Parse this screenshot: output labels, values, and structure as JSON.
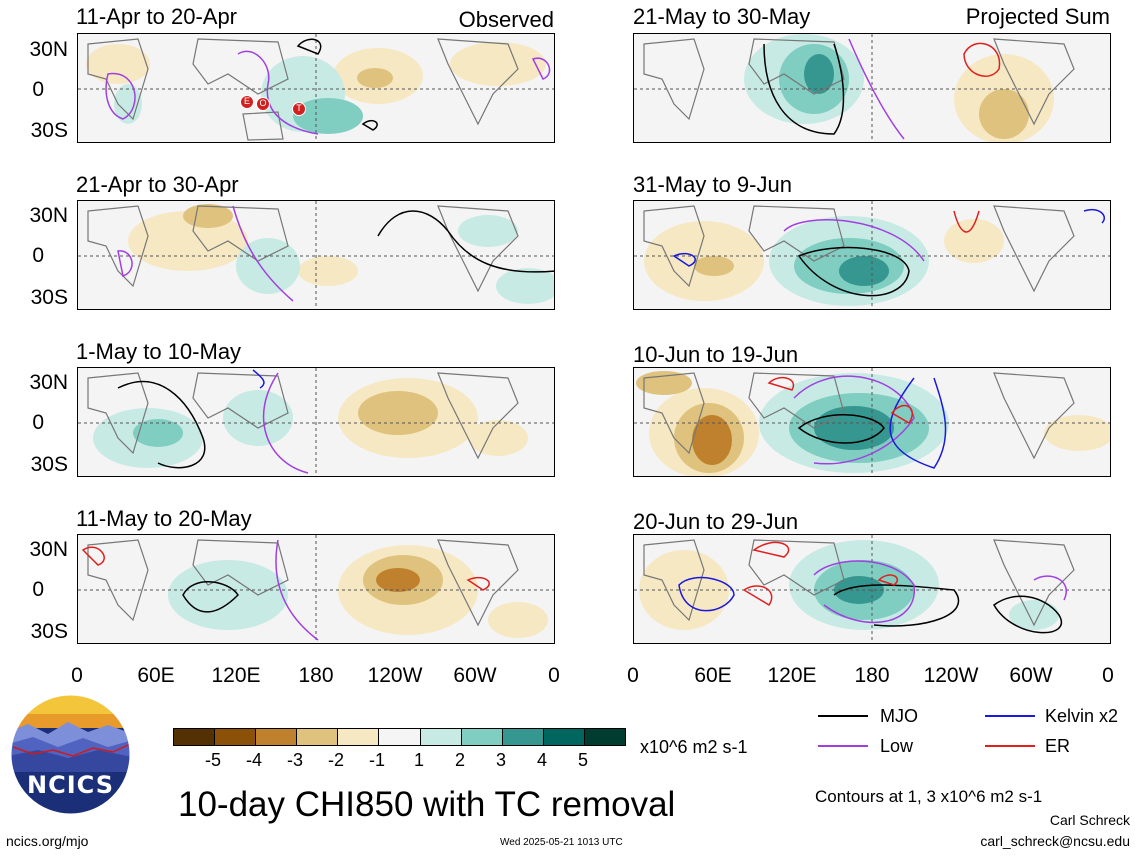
{
  "panels": {
    "left": [
      {
        "title": "11-Apr to 20-Apr",
        "right_title": "Observed"
      },
      {
        "title": "21-Apr to 30-Apr",
        "right_title": ""
      },
      {
        "title": "1-May to 10-May",
        "right_title": ""
      },
      {
        "title": "11-May to 20-May",
        "right_title": ""
      }
    ],
    "right": [
      {
        "title": "21-May to 30-May",
        "right_title": "Projected Sum"
      },
      {
        "title": "31-May to 9-Jun",
        "right_title": ""
      },
      {
        "title": "10-Jun to 19-Jun",
        "right_title": ""
      },
      {
        "title": "20-Jun to 29-Jun",
        "right_title": ""
      }
    ]
  },
  "axes": {
    "y_ticks": [
      "30N",
      "0",
      "30S"
    ],
    "x_ticks": [
      "0",
      "60E",
      "120E",
      "180",
      "120W",
      "60W",
      "0"
    ]
  },
  "tc_markers": [
    "E",
    "O",
    "T"
  ],
  "colorbar": {
    "labels": [
      "-5",
      "-4",
      "-3",
      "-2",
      "-1",
      "1",
      "2",
      "3",
      "4",
      "5"
    ],
    "units": "x10^6 m2 s-1",
    "colors": [
      "#543005",
      "#8c5109",
      "#bf812d",
      "#dfc27d",
      "#f6e8c3",
      "#f5f5f5",
      "#c7eae5",
      "#80cdc1",
      "#35978f",
      "#01665e",
      "#003c30"
    ]
  },
  "contour_legend": [
    {
      "label": "MJO",
      "color": "#000000"
    },
    {
      "label": "Kelvin x2",
      "color": "#1a1adc"
    },
    {
      "label": "Low",
      "color": "#a040e0"
    },
    {
      "label": "ER",
      "color": "#e02020"
    }
  ],
  "main_title": "10-day CHI850 with TC removal",
  "contours_note": "Contours at 1, 3 x10^6 m2 s-1",
  "author": "Carl Schreck",
  "email": "carl_schreck@ncsu.edu",
  "site": "ncics.org/mjo",
  "timestamp": "Wed 2025-05-21 1013 UTC",
  "logo_text": "NCICS"
}
